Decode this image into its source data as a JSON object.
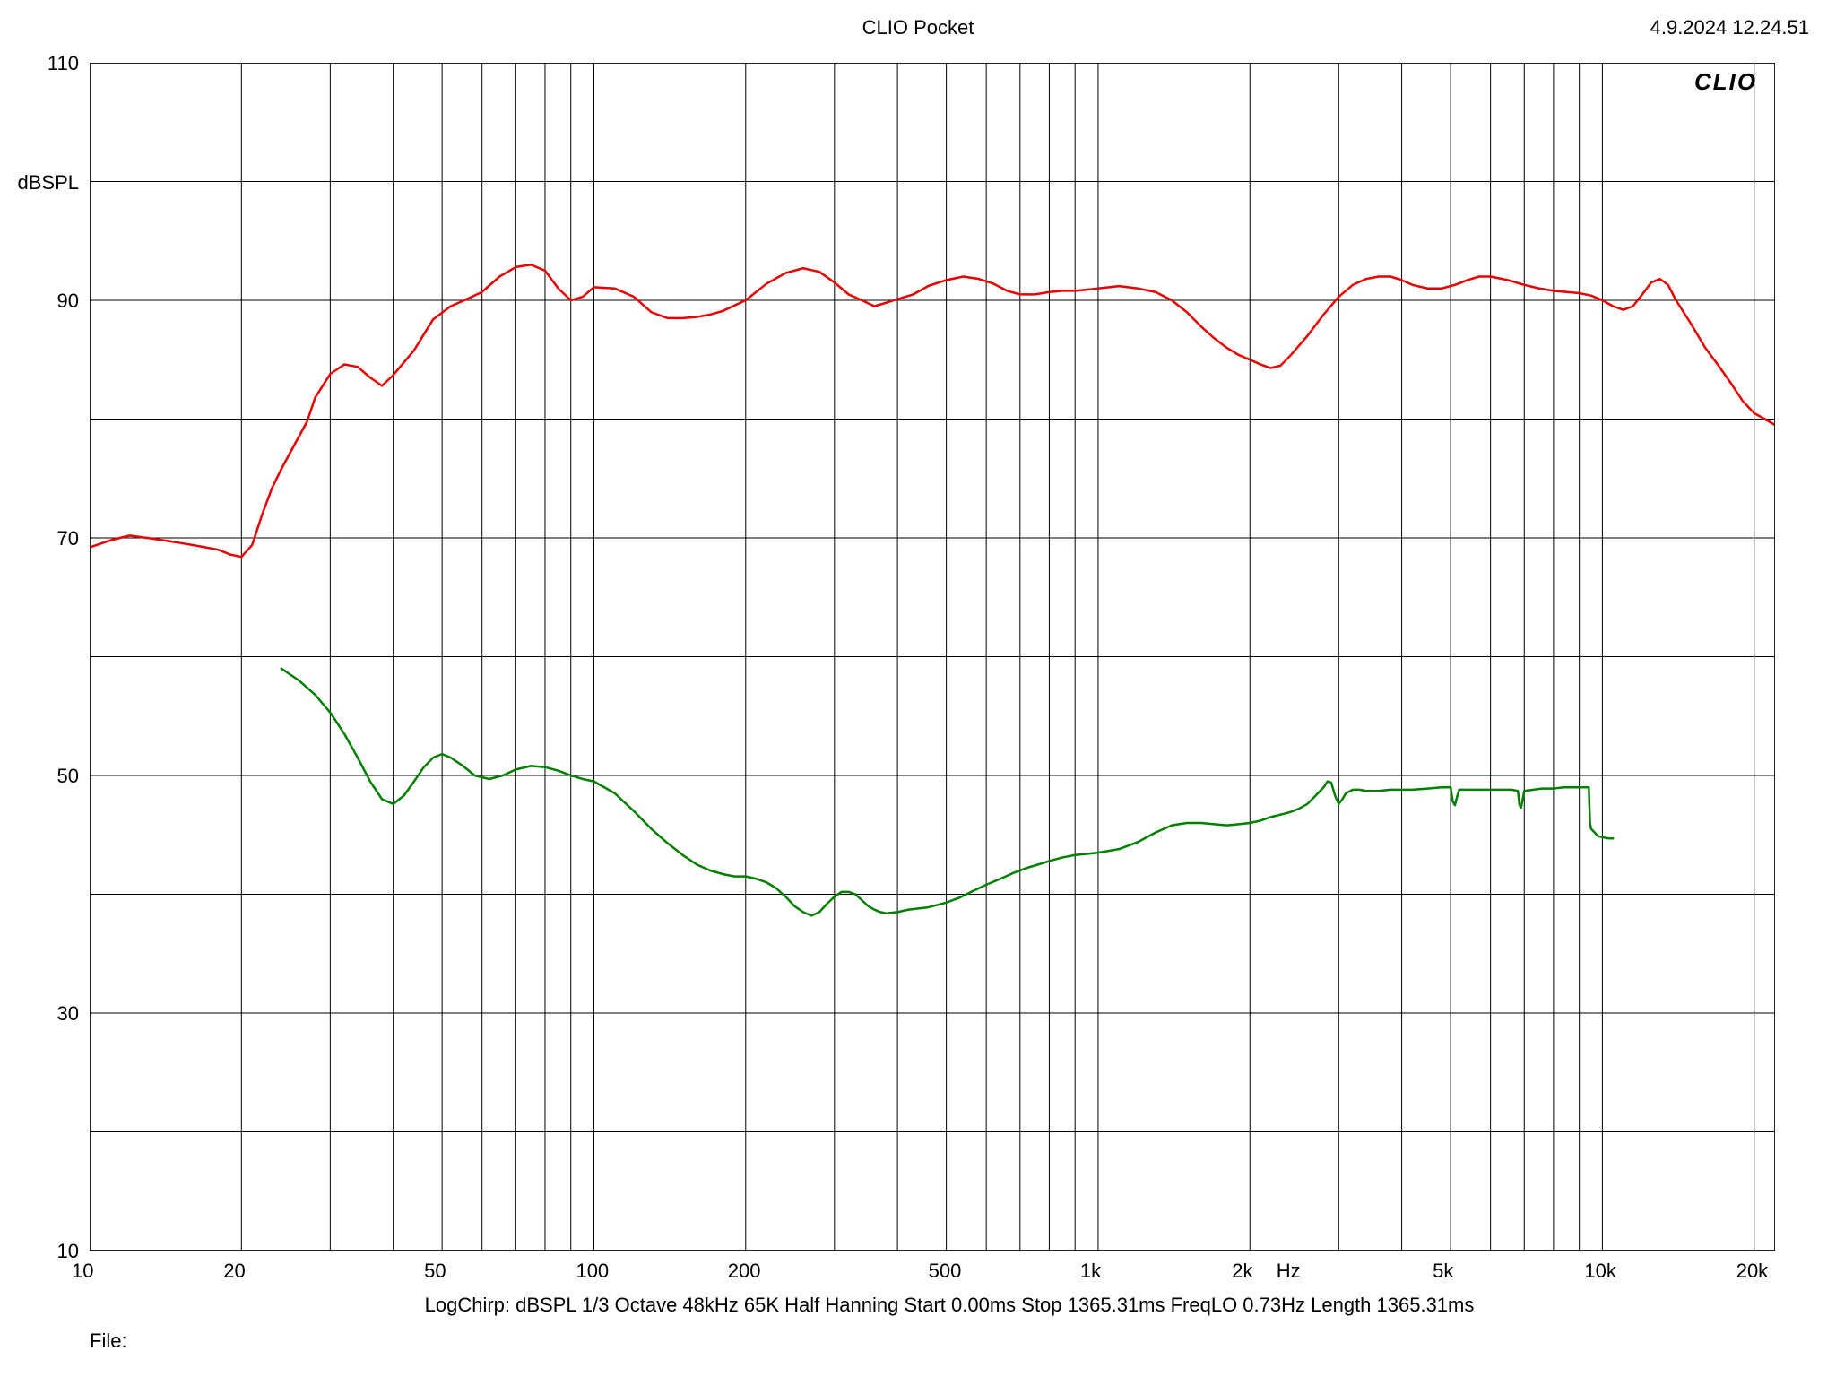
{
  "header": {
    "title": "CLIO Pocket",
    "timestamp": "4.9.2024 12.24.51",
    "watermark": "CLIO"
  },
  "footer": {
    "line": "LogChirp:   dBSPL   1/3 Octave   48kHz   65K   Half Hanning   Start 0.00ms    Stop 1365.31ms    FreqLO 0.73Hz    Length 1365.31ms",
    "file_label": "File:"
  },
  "chart": {
    "type": "line",
    "plot_bg": "#ffffff",
    "grid_color": "#000000",
    "grid_width": 1,
    "border_width": 1.5,
    "x": {
      "scale": "log",
      "min": 10,
      "max": 22000,
      "unit_label": "Hz",
      "unit_label_at": 2400,
      "major_ticks": [
        {
          "v": 10,
          "label": "10"
        },
        {
          "v": 20,
          "label": "20"
        },
        {
          "v": 50,
          "label": "50"
        },
        {
          "v": 100,
          "label": "100"
        },
        {
          "v": 200,
          "label": "200"
        },
        {
          "v": 500,
          "label": "500"
        },
        {
          "v": 1000,
          "label": "1k"
        },
        {
          "v": 2000,
          "label": "2k"
        },
        {
          "v": 5000,
          "label": "5k"
        },
        {
          "v": 10000,
          "label": "10k"
        },
        {
          "v": 20000,
          "label": "20k"
        }
      ],
      "minor_ticks": [
        30,
        40,
        60,
        70,
        80,
        90,
        300,
        400,
        600,
        700,
        800,
        900,
        3000,
        4000,
        6000,
        7000,
        8000,
        9000
      ]
    },
    "y": {
      "scale": "linear",
      "min": 10,
      "max": 110,
      "unit_label": "dBSPL",
      "unit_label_at": 100,
      "major_ticks": [
        {
          "v": 10,
          "label": "10"
        },
        {
          "v": 30,
          "label": "30"
        },
        {
          "v": 50,
          "label": "50"
        },
        {
          "v": 70,
          "label": "70"
        },
        {
          "v": 90,
          "label": "90"
        },
        {
          "v": 110,
          "label": "110"
        }
      ],
      "minor_ticks": [
        20,
        40,
        60,
        80,
        100
      ]
    },
    "series": [
      {
        "name": "spl",
        "color": "#e60000",
        "width": 2.5,
        "points": [
          [
            10,
            69.2
          ],
          [
            11,
            69.8
          ],
          [
            12,
            70.2
          ],
          [
            13,
            70.0
          ],
          [
            14,
            69.8
          ],
          [
            15,
            69.6
          ],
          [
            16,
            69.4
          ],
          [
            17,
            69.2
          ],
          [
            18,
            69.0
          ],
          [
            19,
            68.6
          ],
          [
            20,
            68.4
          ],
          [
            21,
            69.4
          ],
          [
            22,
            72.0
          ],
          [
            23,
            74.2
          ],
          [
            24,
            75.8
          ],
          [
            25,
            77.2
          ],
          [
            27,
            79.8
          ],
          [
            28,
            81.8
          ],
          [
            30,
            83.8
          ],
          [
            32,
            84.6
          ],
          [
            34,
            84.4
          ],
          [
            36,
            83.5
          ],
          [
            38,
            82.8
          ],
          [
            40,
            83.7
          ],
          [
            44,
            85.8
          ],
          [
            48,
            88.4
          ],
          [
            52,
            89.5
          ],
          [
            56,
            90.1
          ],
          [
            60,
            90.7
          ],
          [
            65,
            92.0
          ],
          [
            70,
            92.8
          ],
          [
            75,
            93.0
          ],
          [
            80,
            92.5
          ],
          [
            85,
            91.0
          ],
          [
            90,
            90.0
          ],
          [
            95,
            90.3
          ],
          [
            100,
            91.1
          ],
          [
            110,
            91.0
          ],
          [
            120,
            90.3
          ],
          [
            130,
            89.0
          ],
          [
            140,
            88.5
          ],
          [
            150,
            88.5
          ],
          [
            160,
            88.6
          ],
          [
            170,
            88.8
          ],
          [
            180,
            89.1
          ],
          [
            200,
            90.0
          ],
          [
            220,
            91.4
          ],
          [
            240,
            92.3
          ],
          [
            260,
            92.7
          ],
          [
            280,
            92.4
          ],
          [
            300,
            91.5
          ],
          [
            320,
            90.5
          ],
          [
            340,
            90.0
          ],
          [
            360,
            89.5
          ],
          [
            380,
            89.8
          ],
          [
            400,
            90.1
          ],
          [
            430,
            90.5
          ],
          [
            460,
            91.2
          ],
          [
            500,
            91.7
          ],
          [
            540,
            92.0
          ],
          [
            580,
            91.8
          ],
          [
            620,
            91.4
          ],
          [
            660,
            90.8
          ],
          [
            700,
            90.5
          ],
          [
            750,
            90.5
          ],
          [
            800,
            90.7
          ],
          [
            850,
            90.8
          ],
          [
            900,
            90.8
          ],
          [
            950,
            90.9
          ],
          [
            1000,
            91.0
          ],
          [
            1100,
            91.2
          ],
          [
            1200,
            91.0
          ],
          [
            1300,
            90.7
          ],
          [
            1400,
            90.0
          ],
          [
            1500,
            89.0
          ],
          [
            1600,
            87.8
          ],
          [
            1700,
            86.8
          ],
          [
            1800,
            86.0
          ],
          [
            1900,
            85.4
          ],
          [
            2000,
            85.0
          ],
          [
            2100,
            84.6
          ],
          [
            2200,
            84.3
          ],
          [
            2300,
            84.5
          ],
          [
            2400,
            85.3
          ],
          [
            2600,
            87.0
          ],
          [
            2800,
            88.8
          ],
          [
            3000,
            90.3
          ],
          [
            3200,
            91.3
          ],
          [
            3400,
            91.8
          ],
          [
            3600,
            92.0
          ],
          [
            3800,
            92.0
          ],
          [
            4000,
            91.7
          ],
          [
            4200,
            91.3
          ],
          [
            4500,
            91.0
          ],
          [
            4800,
            91.0
          ],
          [
            5100,
            91.3
          ],
          [
            5400,
            91.7
          ],
          [
            5700,
            92.0
          ],
          [
            6000,
            92.0
          ],
          [
            6500,
            91.7
          ],
          [
            7000,
            91.3
          ],
          [
            7500,
            91.0
          ],
          [
            8000,
            90.8
          ],
          [
            8500,
            90.7
          ],
          [
            9000,
            90.6
          ],
          [
            9500,
            90.4
          ],
          [
            10000,
            90.0
          ],
          [
            10500,
            89.5
          ],
          [
            11000,
            89.2
          ],
          [
            11500,
            89.5
          ],
          [
            12000,
            90.5
          ],
          [
            12500,
            91.5
          ],
          [
            13000,
            91.8
          ],
          [
            13500,
            91.3
          ],
          [
            14000,
            90.0
          ],
          [
            15000,
            88.0
          ],
          [
            16000,
            86.0
          ],
          [
            17000,
            84.5
          ],
          [
            18000,
            83.0
          ],
          [
            19000,
            81.5
          ],
          [
            20000,
            80.5
          ],
          [
            21000,
            80.0
          ],
          [
            22000,
            79.5
          ]
        ]
      },
      {
        "name": "distortion",
        "color": "#008000",
        "width": 2.5,
        "points": [
          [
            24,
            59.0
          ],
          [
            26,
            58.0
          ],
          [
            28,
            56.8
          ],
          [
            30,
            55.3
          ],
          [
            32,
            53.5
          ],
          [
            34,
            51.5
          ],
          [
            36,
            49.5
          ],
          [
            38,
            48.0
          ],
          [
            40,
            47.6
          ],
          [
            42,
            48.3
          ],
          [
            44,
            49.5
          ],
          [
            46,
            50.7
          ],
          [
            48,
            51.5
          ],
          [
            50,
            51.8
          ],
          [
            52,
            51.5
          ],
          [
            55,
            50.8
          ],
          [
            58,
            50.0
          ],
          [
            62,
            49.7
          ],
          [
            66,
            50.0
          ],
          [
            70,
            50.5
          ],
          [
            75,
            50.8
          ],
          [
            80,
            50.7
          ],
          [
            85,
            50.4
          ],
          [
            90,
            50.0
          ],
          [
            95,
            49.7
          ],
          [
            100,
            49.5
          ],
          [
            110,
            48.5
          ],
          [
            120,
            47.0
          ],
          [
            130,
            45.5
          ],
          [
            140,
            44.3
          ],
          [
            150,
            43.3
          ],
          [
            160,
            42.5
          ],
          [
            170,
            42.0
          ],
          [
            180,
            41.7
          ],
          [
            190,
            41.5
          ],
          [
            200,
            41.5
          ],
          [
            210,
            41.3
          ],
          [
            220,
            41.0
          ],
          [
            230,
            40.5
          ],
          [
            240,
            39.8
          ],
          [
            250,
            39.0
          ],
          [
            260,
            38.5
          ],
          [
            270,
            38.2
          ],
          [
            280,
            38.5
          ],
          [
            290,
            39.2
          ],
          [
            300,
            39.8
          ],
          [
            310,
            40.2
          ],
          [
            320,
            40.2
          ],
          [
            330,
            40.0
          ],
          [
            340,
            39.5
          ],
          [
            350,
            39.0
          ],
          [
            360,
            38.7
          ],
          [
            370,
            38.5
          ],
          [
            380,
            38.4
          ],
          [
            400,
            38.5
          ],
          [
            420,
            38.7
          ],
          [
            440,
            38.8
          ],
          [
            460,
            38.9
          ],
          [
            480,
            39.1
          ],
          [
            500,
            39.3
          ],
          [
            530,
            39.7
          ],
          [
            560,
            40.2
          ],
          [
            600,
            40.8
          ],
          [
            640,
            41.3
          ],
          [
            680,
            41.8
          ],
          [
            720,
            42.2
          ],
          [
            760,
            42.5
          ],
          [
            800,
            42.8
          ],
          [
            850,
            43.1
          ],
          [
            900,
            43.3
          ],
          [
            950,
            43.4
          ],
          [
            1000,
            43.5
          ],
          [
            1100,
            43.8
          ],
          [
            1200,
            44.4
          ],
          [
            1300,
            45.2
          ],
          [
            1400,
            45.8
          ],
          [
            1500,
            46.0
          ],
          [
            1600,
            46.0
          ],
          [
            1700,
            45.9
          ],
          [
            1800,
            45.8
          ],
          [
            1900,
            45.9
          ],
          [
            2000,
            46.0
          ],
          [
            2100,
            46.2
          ],
          [
            2200,
            46.5
          ],
          [
            2300,
            46.7
          ],
          [
            2400,
            46.9
          ],
          [
            2500,
            47.2
          ],
          [
            2600,
            47.6
          ],
          [
            2700,
            48.3
          ],
          [
            2800,
            49.0
          ],
          [
            2850,
            49.5
          ],
          [
            2900,
            49.4
          ],
          [
            2950,
            48.3
          ],
          [
            3000,
            47.6
          ],
          [
            3050,
            48.0
          ],
          [
            3100,
            48.5
          ],
          [
            3200,
            48.8
          ],
          [
            3300,
            48.8
          ],
          [
            3400,
            48.7
          ],
          [
            3600,
            48.7
          ],
          [
            3800,
            48.8
          ],
          [
            4000,
            48.8
          ],
          [
            4200,
            48.8
          ],
          [
            4500,
            48.9
          ],
          [
            4800,
            49.0
          ],
          [
            5000,
            49.0
          ],
          [
            5050,
            47.8
          ],
          [
            5100,
            47.5
          ],
          [
            5150,
            48.2
          ],
          [
            5200,
            48.8
          ],
          [
            5400,
            48.8
          ],
          [
            5700,
            48.8
          ],
          [
            6000,
            48.8
          ],
          [
            6300,
            48.8
          ],
          [
            6600,
            48.8
          ],
          [
            6800,
            48.7
          ],
          [
            6850,
            47.5
          ],
          [
            6900,
            47.3
          ],
          [
            6950,
            48.0
          ],
          [
            7000,
            48.7
          ],
          [
            7300,
            48.8
          ],
          [
            7600,
            48.9
          ],
          [
            8000,
            48.9
          ],
          [
            8400,
            49.0
          ],
          [
            8800,
            49.0
          ],
          [
            9200,
            49.0
          ],
          [
            9400,
            49.0
          ],
          [
            9450,
            46.0
          ],
          [
            9500,
            45.5
          ],
          [
            9600,
            45.3
          ],
          [
            9800,
            44.9
          ],
          [
            10000,
            44.8
          ],
          [
            10300,
            44.7
          ],
          [
            10500,
            44.7
          ]
        ]
      }
    ]
  }
}
